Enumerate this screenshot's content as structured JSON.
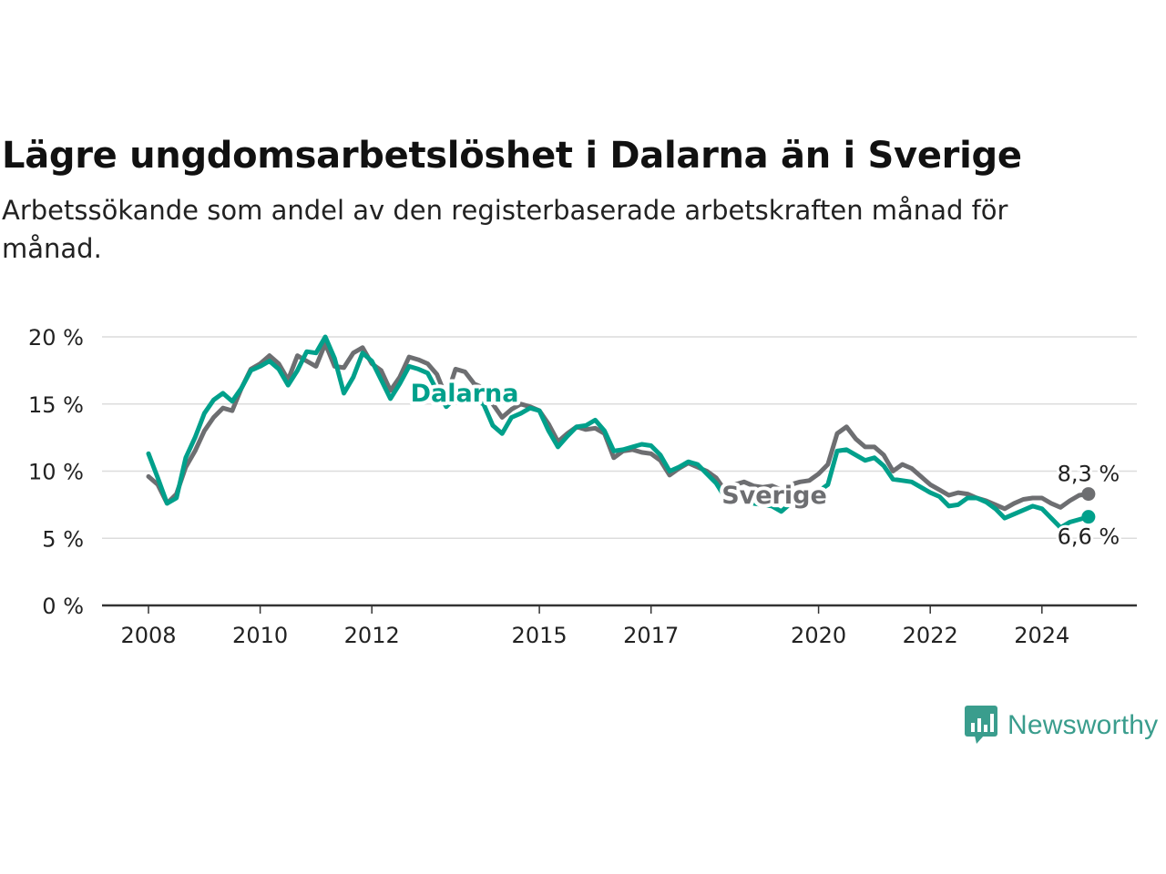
{
  "title": "Lägre ungdomsarbetslöshet i Dalarna än i Sverige",
  "subtitle": "Arbetssökande som andel av den registerbaserade arbetskraften månad för månad.",
  "brand": {
    "name": "Newsworthy",
    "color": "#3a9d8d",
    "icon": "bar-chart-speech-bubble-icon"
  },
  "chart_data": {
    "type": "line",
    "xlabel": "",
    "ylabel": "",
    "x_ticks": [
      "2008",
      "2010",
      "2012",
      "2015",
      "2017",
      "2020",
      "2022",
      "2024"
    ],
    "y_ticks": [
      "0 %",
      "5 %",
      "10 %",
      "15 %",
      "20 %"
    ],
    "ylim": [
      0,
      20
    ],
    "grid": true,
    "series": [
      {
        "name": "Sverige",
        "color": "#6d6e71",
        "end_label": "8,3 %",
        "points": [
          [
            "2008-01",
            9.6
          ],
          [
            "2008-03",
            9.0
          ],
          [
            "2008-05",
            7.6
          ],
          [
            "2008-07",
            8.3
          ],
          [
            "2008-09",
            10.3
          ],
          [
            "2008-11",
            11.5
          ],
          [
            "2009-01",
            13.0
          ],
          [
            "2009-03",
            14.0
          ],
          [
            "2009-05",
            14.7
          ],
          [
            "2009-07",
            14.5
          ],
          [
            "2009-09",
            16.2
          ],
          [
            "2009-11",
            17.6
          ],
          [
            "2010-01",
            18.0
          ],
          [
            "2010-03",
            18.6
          ],
          [
            "2010-05",
            18.0
          ],
          [
            "2010-07",
            16.8
          ],
          [
            "2010-09",
            18.6
          ],
          [
            "2010-11",
            18.2
          ],
          [
            "2011-01",
            17.8
          ],
          [
            "2011-03",
            19.5
          ],
          [
            "2011-05",
            17.8
          ],
          [
            "2011-07",
            17.7
          ],
          [
            "2011-09",
            18.8
          ],
          [
            "2011-11",
            19.2
          ],
          [
            "2012-01",
            18.0
          ],
          [
            "2012-03",
            17.5
          ],
          [
            "2012-05",
            16.0
          ],
          [
            "2012-07",
            17.0
          ],
          [
            "2012-09",
            18.5
          ],
          [
            "2012-11",
            18.3
          ],
          [
            "2013-01",
            18.0
          ],
          [
            "2013-03",
            17.2
          ],
          [
            "2013-05",
            15.5
          ],
          [
            "2013-07",
            17.6
          ],
          [
            "2013-09",
            17.4
          ],
          [
            "2013-11",
            16.5
          ],
          [
            "2014-01",
            16.2
          ],
          [
            "2014-03",
            15.0
          ],
          [
            "2014-05",
            14.0
          ],
          [
            "2014-07",
            14.6
          ],
          [
            "2014-09",
            15.0
          ],
          [
            "2014-11",
            14.8
          ],
          [
            "2015-01",
            14.5
          ],
          [
            "2015-03",
            13.5
          ],
          [
            "2015-05",
            12.2
          ],
          [
            "2015-07",
            12.8
          ],
          [
            "2015-09",
            13.3
          ],
          [
            "2015-11",
            13.1
          ],
          [
            "2016-01",
            13.2
          ],
          [
            "2016-03",
            12.8
          ],
          [
            "2016-05",
            11.0
          ],
          [
            "2016-07",
            11.5
          ],
          [
            "2016-09",
            11.6
          ],
          [
            "2016-11",
            11.4
          ],
          [
            "2017-01",
            11.3
          ],
          [
            "2017-03",
            10.8
          ],
          [
            "2017-05",
            9.7
          ],
          [
            "2017-07",
            10.2
          ],
          [
            "2017-09",
            10.6
          ],
          [
            "2017-11",
            10.3
          ],
          [
            "2018-01",
            10.0
          ],
          [
            "2018-03",
            9.5
          ],
          [
            "2018-05",
            8.5
          ],
          [
            "2018-07",
            9.0
          ],
          [
            "2018-09",
            9.2
          ],
          [
            "2018-11",
            8.9
          ],
          [
            "2019-01",
            8.8
          ],
          [
            "2019-03",
            8.9
          ],
          [
            "2019-05",
            8.6
          ],
          [
            "2019-07",
            9.0
          ],
          [
            "2019-09",
            9.2
          ],
          [
            "2019-11",
            9.3
          ],
          [
            "2020-01",
            9.8
          ],
          [
            "2020-03",
            10.5
          ],
          [
            "2020-05",
            12.8
          ],
          [
            "2020-07",
            13.3
          ],
          [
            "2020-09",
            12.4
          ],
          [
            "2020-11",
            11.8
          ],
          [
            "2021-01",
            11.8
          ],
          [
            "2021-03",
            11.2
          ],
          [
            "2021-05",
            10.0
          ],
          [
            "2021-07",
            10.5
          ],
          [
            "2021-09",
            10.2
          ],
          [
            "2021-11",
            9.6
          ],
          [
            "2022-01",
            9.0
          ],
          [
            "2022-03",
            8.6
          ],
          [
            "2022-05",
            8.2
          ],
          [
            "2022-07",
            8.4
          ],
          [
            "2022-09",
            8.3
          ],
          [
            "2022-11",
            8.0
          ],
          [
            "2023-01",
            7.8
          ],
          [
            "2023-03",
            7.5
          ],
          [
            "2023-05",
            7.2
          ],
          [
            "2023-07",
            7.6
          ],
          [
            "2023-09",
            7.9
          ],
          [
            "2023-11",
            8.0
          ],
          [
            "2024-01",
            8.0
          ],
          [
            "2024-03",
            7.6
          ],
          [
            "2024-05",
            7.3
          ],
          [
            "2024-07",
            7.8
          ],
          [
            "2024-09",
            8.2
          ],
          [
            "2024-11",
            8.3
          ]
        ]
      },
      {
        "name": "Dalarna",
        "color": "#00a08b",
        "end_label": "6,6 %",
        "points": [
          [
            "2008-01",
            11.3
          ],
          [
            "2008-03",
            9.5
          ],
          [
            "2008-05",
            7.6
          ],
          [
            "2008-07",
            8.0
          ],
          [
            "2008-09",
            11.0
          ],
          [
            "2008-11",
            12.5
          ],
          [
            "2009-01",
            14.3
          ],
          [
            "2009-03",
            15.3
          ],
          [
            "2009-05",
            15.8
          ],
          [
            "2009-07",
            15.2
          ],
          [
            "2009-09",
            16.2
          ],
          [
            "2009-11",
            17.5
          ],
          [
            "2010-01",
            17.8
          ],
          [
            "2010-03",
            18.2
          ],
          [
            "2010-05",
            17.6
          ],
          [
            "2010-07",
            16.4
          ],
          [
            "2010-09",
            17.5
          ],
          [
            "2010-11",
            18.9
          ],
          [
            "2011-01",
            18.8
          ],
          [
            "2011-03",
            20.0
          ],
          [
            "2011-05",
            18.4
          ],
          [
            "2011-07",
            15.8
          ],
          [
            "2011-09",
            17.0
          ],
          [
            "2011-11",
            18.8
          ],
          [
            "2012-01",
            18.2
          ],
          [
            "2012-03",
            16.8
          ],
          [
            "2012-05",
            15.4
          ],
          [
            "2012-07",
            16.5
          ],
          [
            "2012-09",
            17.8
          ],
          [
            "2012-11",
            17.6
          ],
          [
            "2013-01",
            17.3
          ],
          [
            "2013-03",
            16.0
          ],
          [
            "2013-05",
            14.8
          ],
          [
            "2013-07",
            15.5
          ],
          [
            "2013-09",
            15.6
          ],
          [
            "2013-11",
            15.3
          ],
          [
            "2014-01",
            15.0
          ],
          [
            "2014-03",
            13.4
          ],
          [
            "2014-05",
            12.8
          ],
          [
            "2014-07",
            14.0
          ],
          [
            "2014-09",
            14.3
          ],
          [
            "2014-11",
            14.7
          ],
          [
            "2015-01",
            14.5
          ],
          [
            "2015-03",
            13.0
          ],
          [
            "2015-05",
            11.8
          ],
          [
            "2015-07",
            12.6
          ],
          [
            "2015-09",
            13.3
          ],
          [
            "2015-11",
            13.4
          ],
          [
            "2016-01",
            13.8
          ],
          [
            "2016-03",
            13.0
          ],
          [
            "2016-05",
            11.5
          ],
          [
            "2016-07",
            11.6
          ],
          [
            "2016-09",
            11.8
          ],
          [
            "2016-11",
            12.0
          ],
          [
            "2017-01",
            11.9
          ],
          [
            "2017-03",
            11.2
          ],
          [
            "2017-05",
            10.0
          ],
          [
            "2017-07",
            10.3
          ],
          [
            "2017-09",
            10.7
          ],
          [
            "2017-11",
            10.5
          ],
          [
            "2018-01",
            9.8
          ],
          [
            "2018-03",
            9.1
          ],
          [
            "2018-05",
            8.0
          ],
          [
            "2018-07",
            8.2
          ],
          [
            "2018-09",
            8.0
          ],
          [
            "2018-11",
            7.6
          ],
          [
            "2019-01",
            7.5
          ],
          [
            "2019-03",
            7.4
          ],
          [
            "2019-05",
            7.0
          ],
          [
            "2019-07",
            7.6
          ],
          [
            "2019-09",
            8.0
          ],
          [
            "2019-11",
            8.2
          ],
          [
            "2020-01",
            8.5
          ],
          [
            "2020-03",
            9.0
          ],
          [
            "2020-05",
            11.5
          ],
          [
            "2020-07",
            11.6
          ],
          [
            "2020-09",
            11.2
          ],
          [
            "2020-11",
            10.8
          ],
          [
            "2021-01",
            11.0
          ],
          [
            "2021-03",
            10.4
          ],
          [
            "2021-05",
            9.4
          ],
          [
            "2021-07",
            9.3
          ],
          [
            "2021-09",
            9.2
          ],
          [
            "2021-11",
            8.8
          ],
          [
            "2022-01",
            8.4
          ],
          [
            "2022-03",
            8.1
          ],
          [
            "2022-05",
            7.4
          ],
          [
            "2022-07",
            7.5
          ],
          [
            "2022-09",
            8.0
          ],
          [
            "2022-11",
            8.0
          ],
          [
            "2023-01",
            7.7
          ],
          [
            "2023-03",
            7.2
          ],
          [
            "2023-05",
            6.5
          ],
          [
            "2023-07",
            6.8
          ],
          [
            "2023-09",
            7.1
          ],
          [
            "2023-11",
            7.4
          ],
          [
            "2024-01",
            7.2
          ],
          [
            "2024-03",
            6.5
          ],
          [
            "2024-05",
            5.8
          ],
          [
            "2024-07",
            6.2
          ],
          [
            "2024-09",
            6.4
          ],
          [
            "2024-11",
            6.6
          ]
        ]
      }
    ]
  }
}
